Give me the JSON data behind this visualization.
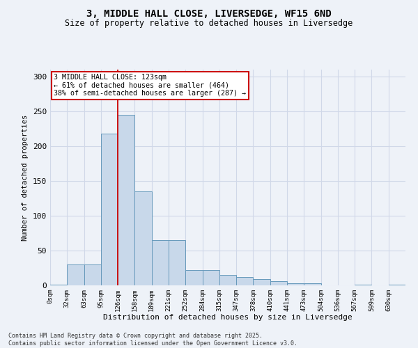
{
  "title_line1": "3, MIDDLE HALL CLOSE, LIVERSEDGE, WF15 6ND",
  "title_line2": "Size of property relative to detached houses in Liversedge",
  "xlabel": "Distribution of detached houses by size in Liversedge",
  "ylabel": "Number of detached properties",
  "bins": [
    "0sqm",
    "32sqm",
    "63sqm",
    "95sqm",
    "126sqm",
    "158sqm",
    "189sqm",
    "221sqm",
    "252sqm",
    "284sqm",
    "315sqm",
    "347sqm",
    "378sqm",
    "410sqm",
    "441sqm",
    "473sqm",
    "504sqm",
    "536sqm",
    "567sqm",
    "599sqm",
    "630sqm"
  ],
  "values": [
    1,
    30,
    30,
    218,
    245,
    135,
    65,
    65,
    22,
    22,
    15,
    12,
    9,
    6,
    3,
    3,
    0,
    0,
    1,
    0,
    1
  ],
  "bar_color": "#c8d8ea",
  "bar_edge_color": "#6699bb",
  "grid_color": "#d0d8e8",
  "background_color": "#eef2f8",
  "vline_color": "#cc0000",
  "annotation_text": "3 MIDDLE HALL CLOSE: 123sqm\n← 61% of detached houses are smaller (464)\n38% of semi-detached houses are larger (287) →",
  "annotation_box_color": "#ffffff",
  "annotation_border_color": "#cc0000",
  "footer_line1": "Contains HM Land Registry data © Crown copyright and database right 2025.",
  "footer_line2": "Contains public sector information licensed under the Open Government Licence v3.0.",
  "ylim": [
    0,
    310
  ],
  "yticks": [
    0,
    50,
    100,
    150,
    200,
    250,
    300
  ]
}
